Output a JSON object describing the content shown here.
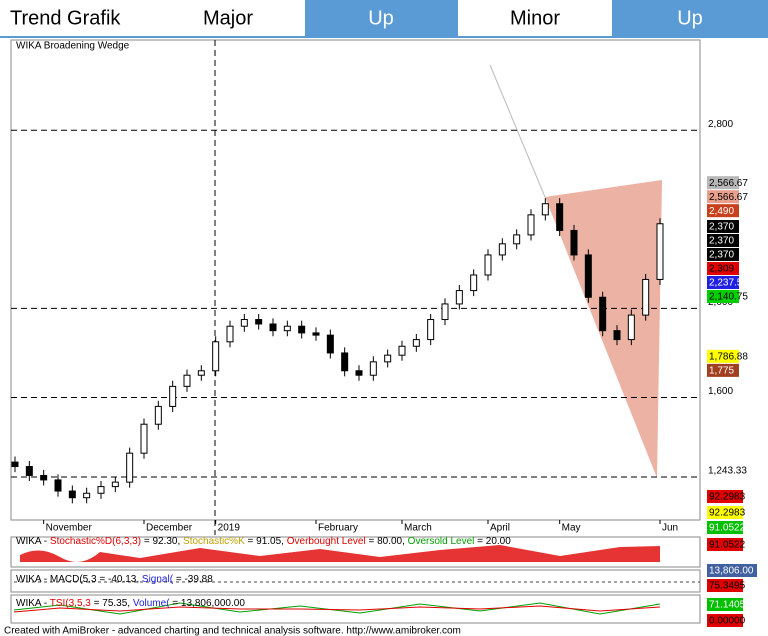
{
  "header": {
    "cells": [
      "Trend Grafik",
      "Major",
      "Up",
      "Minor",
      "Up"
    ]
  },
  "chart_data": {
    "type": "candlestick",
    "title": "WIKA Broadening Wedge",
    "categories": [
      null,
      null,
      "November",
      null,
      null,
      null,
      null,
      null,
      null,
      "December",
      null,
      null,
      null,
      null,
      "2019",
      null,
      null,
      null,
      null,
      null,
      null,
      "February",
      null,
      null,
      null,
      null,
      null,
      "March",
      null,
      null,
      null,
      null,
      null,
      "April",
      null,
      null,
      null,
      null,
      "May",
      null,
      null,
      null,
      null,
      null,
      null,
      "Jun"
    ],
    "open": [
      1310,
      1290,
      1250,
      1230,
      1180,
      1150,
      1170,
      1200,
      1220,
      1350,
      1480,
      1560,
      1650,
      1700,
      1720,
      1850,
      1920,
      1950,
      1930,
      1900,
      1920,
      1890,
      1880,
      1800,
      1720,
      1700,
      1760,
      1790,
      1830,
      1860,
      1950,
      2020,
      2080,
      2150,
      2240,
      2290,
      2330,
      2420,
      2470,
      2350,
      2240,
      2050,
      1900,
      1860,
      1970,
      2130
    ],
    "high": [
      1335,
      1315,
      1275,
      1255,
      1205,
      1195,
      1225,
      1245,
      1375,
      1505,
      1585,
      1675,
      1725,
      1745,
      1875,
      1945,
      1975,
      1975,
      1955,
      1945,
      1945,
      1915,
      1905,
      1825,
      1745,
      1785,
      1815,
      1855,
      1885,
      1975,
      2045,
      2105,
      2175,
      2265,
      2315,
      2355,
      2445,
      2495,
      2495,
      2375,
      2265,
      2075,
      1925,
      1995,
      2155,
      2405
    ],
    "low": [
      1265,
      1225,
      1205,
      1155,
      1125,
      1125,
      1145,
      1175,
      1195,
      1325,
      1455,
      1535,
      1625,
      1675,
      1695,
      1825,
      1895,
      1905,
      1875,
      1875,
      1865,
      1855,
      1775,
      1695,
      1675,
      1675,
      1735,
      1765,
      1805,
      1835,
      1925,
      1995,
      2055,
      2125,
      2215,
      2265,
      2305,
      2395,
      2325,
      2215,
      2025,
      1875,
      1835,
      1835,
      1945,
      2105
    ],
    "close": [
      1290,
      1250,
      1230,
      1180,
      1150,
      1170,
      1200,
      1220,
      1350,
      1480,
      1560,
      1650,
      1700,
      1720,
      1850,
      1920,
      1950,
      1930,
      1900,
      1920,
      1890,
      1880,
      1800,
      1720,
      1700,
      1760,
      1790,
      1830,
      1860,
      1950,
      2020,
      2080,
      2150,
      2240,
      2290,
      2330,
      2420,
      2470,
      2350,
      2240,
      2050,
      1900,
      1860,
      1970,
      2130,
      2380
    ],
    "ylim": [
      1050,
      3205
    ],
    "yticks": [
      {
        "value": 2800,
        "label": "2,800"
      },
      {
        "value": 2000,
        "label": "2,000"
      },
      {
        "value": 1600,
        "label": "1,600"
      },
      {
        "value": 1243.33,
        "label": "1,243.33"
      }
    ],
    "price_labels": [
      {
        "value": 2566.67,
        "label": "2,566.67",
        "color": "#b8b8b8",
        "text_color": "#000000"
      },
      {
        "value": 2566.67,
        "label": "2,566.67",
        "color": "#e8a08c",
        "text_color": "#000000"
      },
      {
        "value": 2490,
        "label": "2,490",
        "color": "#c8401c",
        "text_color": "#ffffff"
      },
      {
        "value": 2370,
        "label": "2,370",
        "color": "#000000",
        "text_color": "#ffffff"
      },
      {
        "value": 2370,
        "label": "2,370",
        "color": "#000000",
        "text_color": "#ffffff"
      },
      {
        "value": 2370,
        "label": "2,370",
        "color": "#000000",
        "text_color": "#ffffff"
      },
      {
        "value": 2309,
        "label": "2,309",
        "color": "#e00000",
        "text_color": "#000000"
      },
      {
        "value": 2237.5,
        "label": "2,237.5",
        "color": "#2020e0",
        "text_color": "#ffffff"
      },
      {
        "value": 2140.75,
        "label": "2,140.75",
        "color": "#00d000",
        "text_color": "#000000"
      },
      {
        "value": 1786.88,
        "label": "1,786.88",
        "color": "#ffff00",
        "text_color": "#000000"
      },
      {
        "value": 1775,
        "label": "1,775",
        "color": "#a04020",
        "text_color": "#ffffff"
      }
    ],
    "pane_labels": [
      {
        "value": 92.2983,
        "color": "#e00000",
        "text_color": "#000000"
      },
      {
        "value": 92.2983,
        "color": "#ffff00",
        "text_color": "#000000"
      },
      {
        "value": 91.0522,
        "color": "#00c000",
        "text_color": "#ffffff"
      },
      {
        "value": 91.0522,
        "color": "#e00000",
        "text_color": "#000000"
      },
      {
        "value": 13806,
        "label": "13,806.00",
        "color": "#4060a0",
        "text_color": "#ffffff"
      },
      {
        "value": 75.3495,
        "color": "#e00000",
        "text_color": "#000000"
      },
      {
        "value": 71.1405,
        "color": "#00c000",
        "text_color": "#ffffff"
      },
      {
        "value": 0,
        "label": "0.00000",
        "color": "#e00000",
        "text_color": "#000000"
      }
    ],
    "indicators": [
      {
        "parts": [
          {
            "text": "WIKA - ",
            "color": "#000000"
          },
          {
            "text": "Stochastic%D(6,3,3)",
            "color": "#e00000"
          },
          {
            "text": " = 92.30, ",
            "color": "#000000"
          },
          {
            "text": "Stochastic%K",
            "color": "#c0a000"
          },
          {
            "text": " = 91.05, ",
            "color": "#000000"
          },
          {
            "text": "Overbought Level",
            "color": "#e00000"
          },
          {
            "text": " = 80.00, ",
            "color": "#000000"
          },
          {
            "text": "Oversold Level",
            "color": "#00a000"
          },
          {
            "text": " = 20.00",
            "color": "#000000"
          }
        ]
      },
      {
        "parts": [
          {
            "text": "WIKA - ",
            "color": "#000000"
          },
          {
            "text": "MACD(5,3",
            "color": "#000000"
          },
          {
            "text": " = -40.13, ",
            "color": "#000000"
          },
          {
            "text": "Signal(",
            "color": "#2020e0"
          },
          {
            "text": " = -39.88",
            "color": "#000000"
          }
        ]
      },
      {
        "parts": [
          {
            "text": "WIKA - ",
            "color": "#000000"
          },
          {
            "text": "TSI(3,5,3",
            "color": "#e00000"
          },
          {
            "text": " = 75.35, ",
            "color": "#000000"
          },
          {
            "text": "Volume(",
            "color": "#2020e0"
          },
          {
            "text": " = 13,806,000.00",
            "color": "#000000"
          }
        ]
      }
    ],
    "footer": "Created with AmiBroker - advanced charting and technical analysis software. http://www.amibroker.com"
  }
}
